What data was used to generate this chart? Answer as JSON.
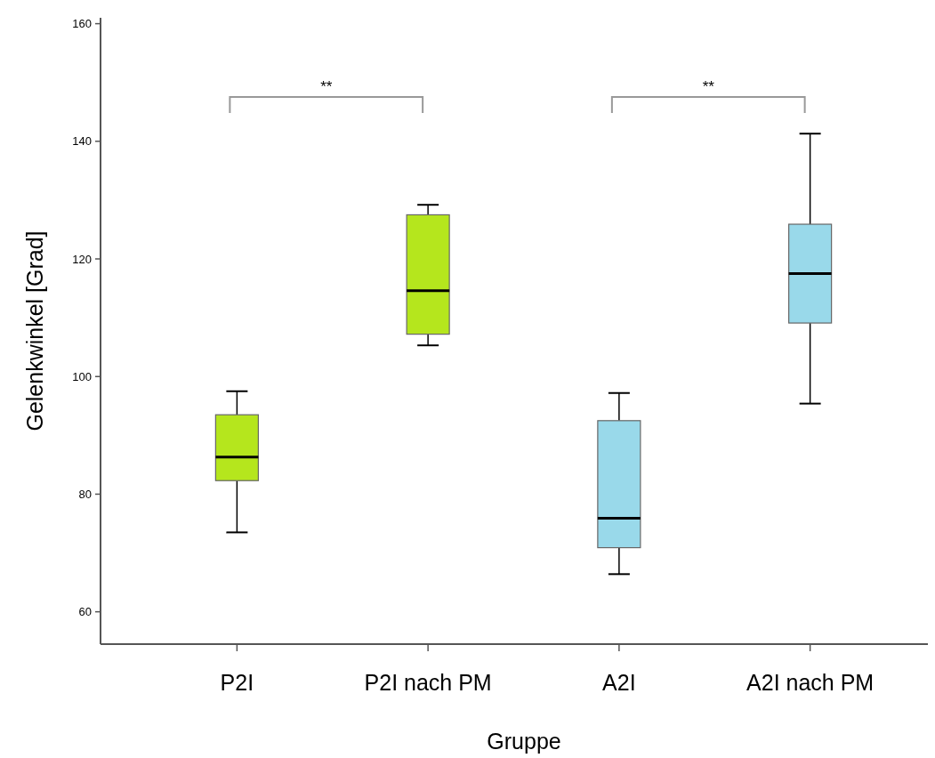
{
  "chart_data": {
    "type": "box",
    "xlabel": "Gruppe",
    "ylabel": "Gelenkwinkel [Grad]",
    "categories": [
      "P2I",
      "P2I nach PM",
      "A2I",
      "A2I nach PM"
    ],
    "colors": [
      "#b5e61d",
      "#b5e61d",
      "#99d9ea",
      "#99d9ea"
    ],
    "boxes": [
      {
        "low": 73.5,
        "q1": 82.3,
        "median": 86.3,
        "q3": 93.5,
        "high": 97.5
      },
      {
        "low": 105.3,
        "q1": 107.2,
        "median": 114.6,
        "q3": 127.5,
        "high": 129.2
      },
      {
        "low": 66.4,
        "q1": 70.9,
        "median": 75.9,
        "q3": 92.5,
        "high": 97.2
      },
      {
        "low": 95.4,
        "q1": 109.1,
        "median": 117.5,
        "q3": 125.9,
        "high": 141.3
      }
    ],
    "ylim": [
      54.5,
      161
    ],
    "yticks": [
      60,
      80,
      100,
      120,
      140,
      160
    ],
    "annotations": [
      "**",
      "**"
    ]
  }
}
